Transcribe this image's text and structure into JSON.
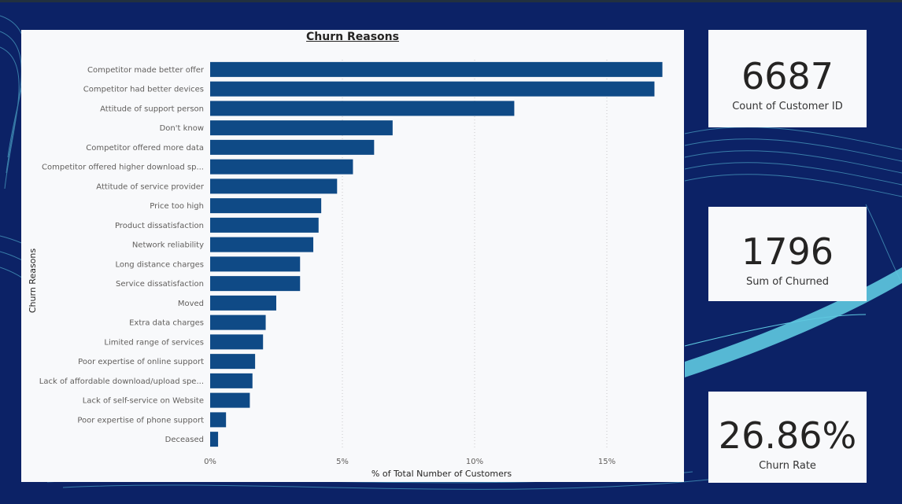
{
  "colors": {
    "page_bg": "#0c2266",
    "panel_bg": "#f8f9fb",
    "bar": "#0f4a86",
    "wave": "#5ec9e0"
  },
  "chart_data": {
    "type": "bar",
    "orientation": "horizontal",
    "title": "Churn Reasons",
    "xlabel": "% of Total Number of Customers",
    "ylabel": "Churn Reasons",
    "xlim": [
      0,
      17.5
    ],
    "xticks": [
      {
        "value": 0,
        "label": "0%"
      },
      {
        "value": 5,
        "label": "5%"
      },
      {
        "value": 10,
        "label": "10%"
      },
      {
        "value": 15,
        "label": "15%"
      }
    ],
    "grid": true,
    "categories": [
      "Competitor made better offer",
      "Competitor had better devices",
      "Attitude of support person",
      "Don't know",
      "Competitor offered more data",
      "Competitor offered higher download sp...",
      "Attitude of service provider",
      "Price too high",
      "Product dissatisfaction",
      "Network reliability",
      "Long distance charges",
      "Service dissatisfaction",
      "Moved",
      "Extra data charges",
      "Limited range of services",
      "Poor expertise of online support",
      "Lack of affordable download/upload spe...",
      "Lack of self-service on Website",
      "Poor expertise of phone support",
      "Deceased"
    ],
    "values": [
      17.1,
      16.8,
      11.5,
      6.9,
      6.2,
      5.4,
      4.8,
      4.2,
      4.1,
      3.9,
      3.4,
      3.4,
      2.5,
      2.1,
      2.0,
      1.7,
      1.6,
      1.5,
      0.6,
      0.3
    ]
  },
  "kpis": [
    {
      "value": "6687",
      "label": "Count of Customer ID"
    },
    {
      "value": "1796",
      "label": "Sum of Churned"
    },
    {
      "value": "26.86%",
      "label": "Churn Rate"
    }
  ]
}
